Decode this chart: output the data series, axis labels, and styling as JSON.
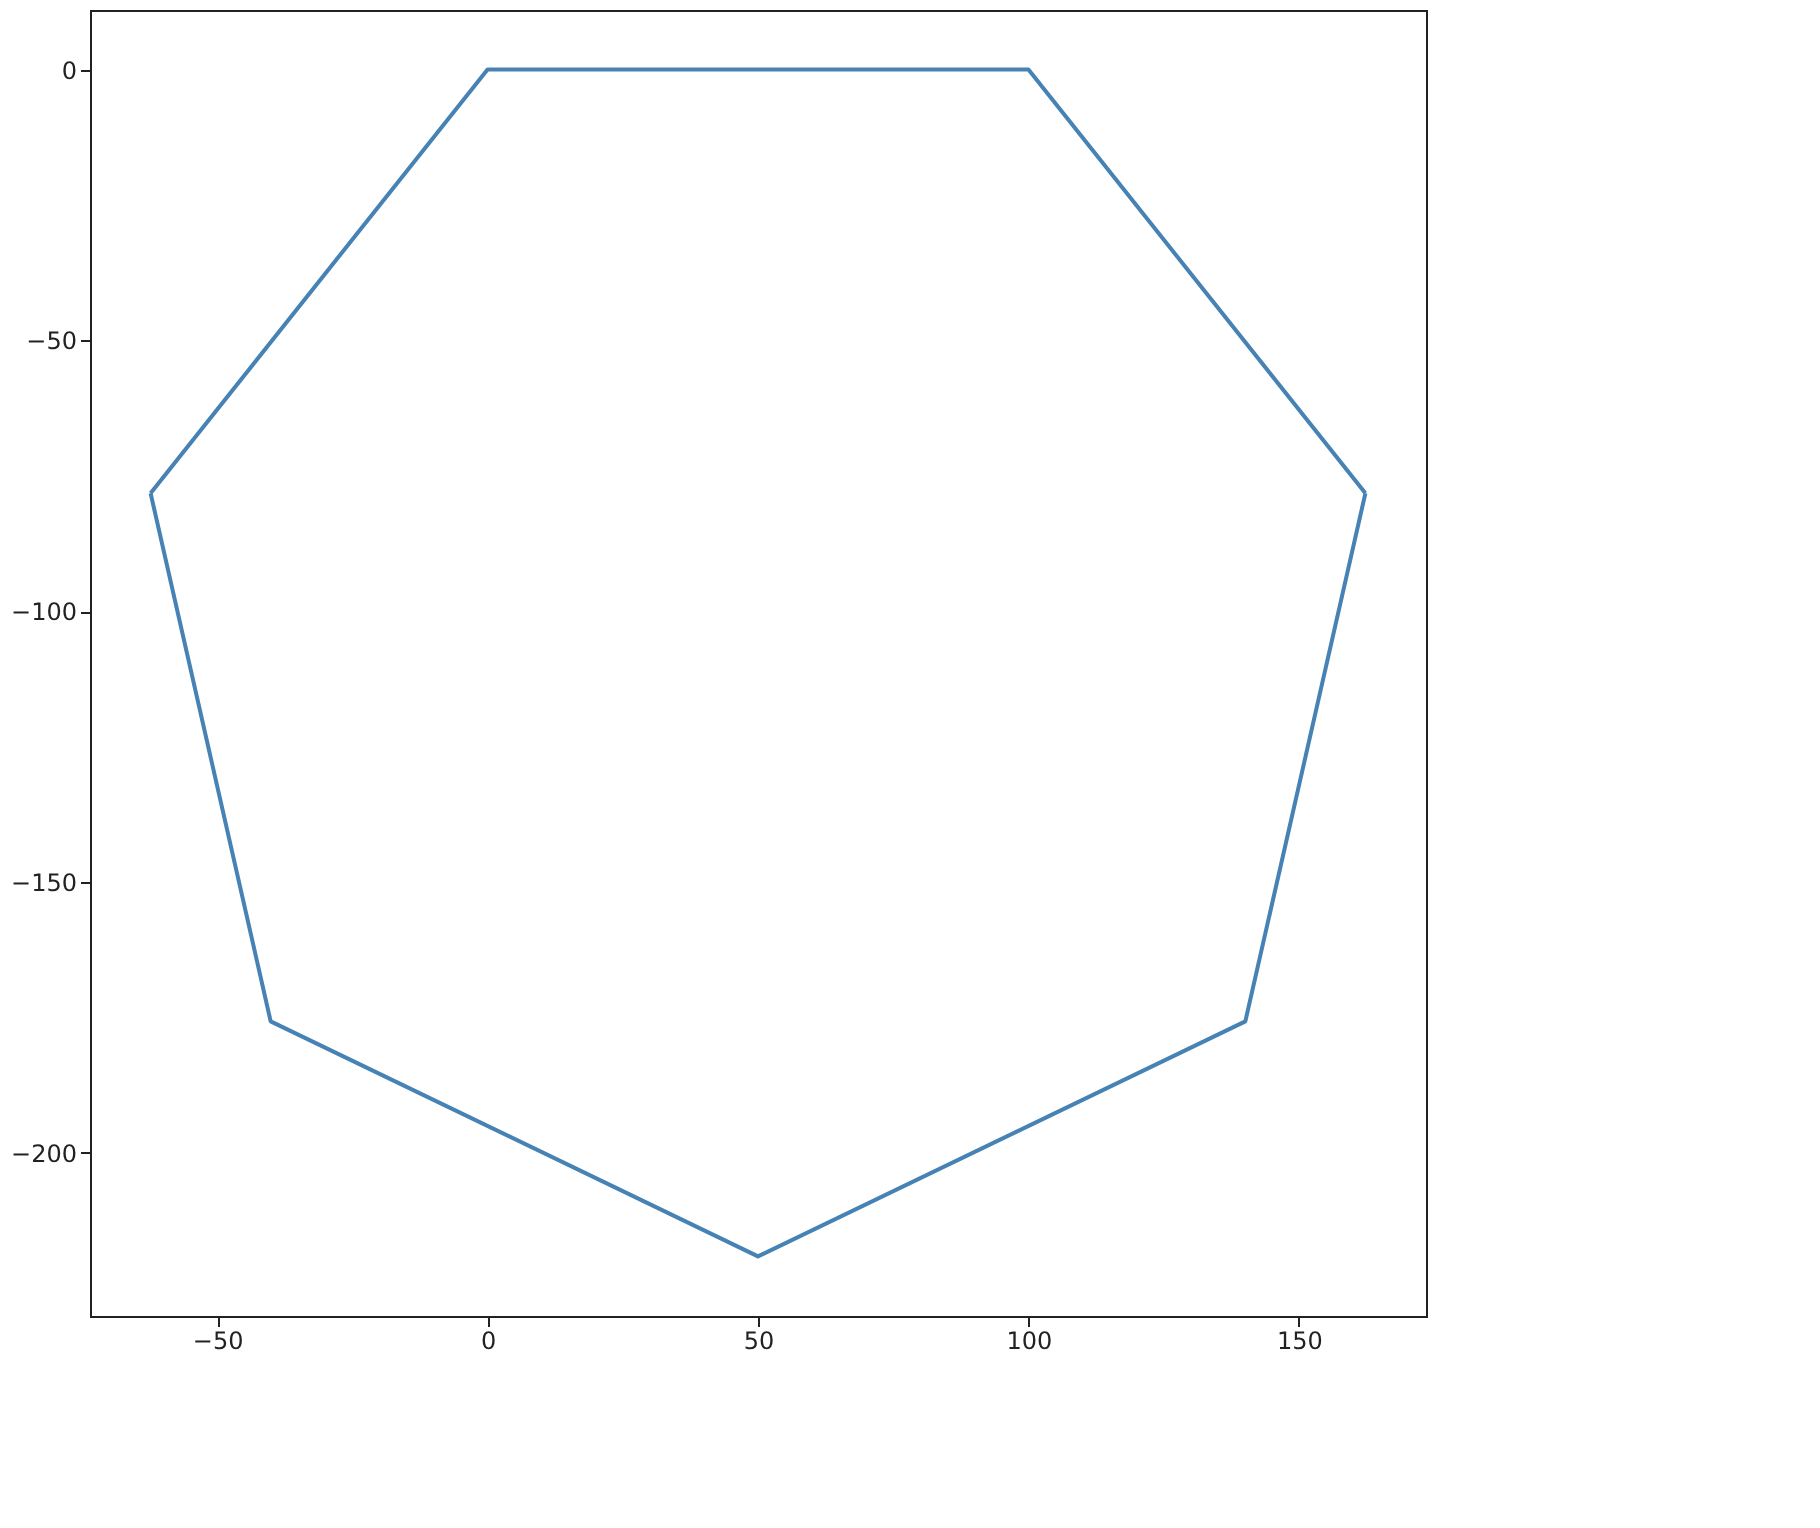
{
  "chart_data": {
    "type": "line",
    "series": [
      {
        "color": "#4682b4",
        "x": [
          -62.3,
          0,
          100,
          162.3
        ],
        "values": [
          -78.2,
          0,
          0,
          -78.2
        ]
      },
      {
        "color": "#4682b4",
        "x": [
          -62.3,
          -40.1,
          50,
          140.1,
          162.3
        ],
        "values": [
          -78.2,
          -175.7,
          -219.1,
          -175.7,
          -78.2
        ]
      }
    ],
    "xlim": [
      -73.5,
      173.5
    ],
    "ylim": [
      -230.1,
      11
    ],
    "xticks": [
      {
        "value": -50,
        "label": "−50"
      },
      0,
      50,
      100,
      150
    ],
    "yticks": [
      0,
      {
        "value": -50,
        "label": "−50"
      },
      {
        "value": -100,
        "label": "−100"
      },
      {
        "value": -150,
        "label": "−150"
      },
      {
        "value": -200,
        "label": "−200"
      }
    ],
    "grid": false,
    "legend": false,
    "marker": "none",
    "line_style": "solid"
  }
}
